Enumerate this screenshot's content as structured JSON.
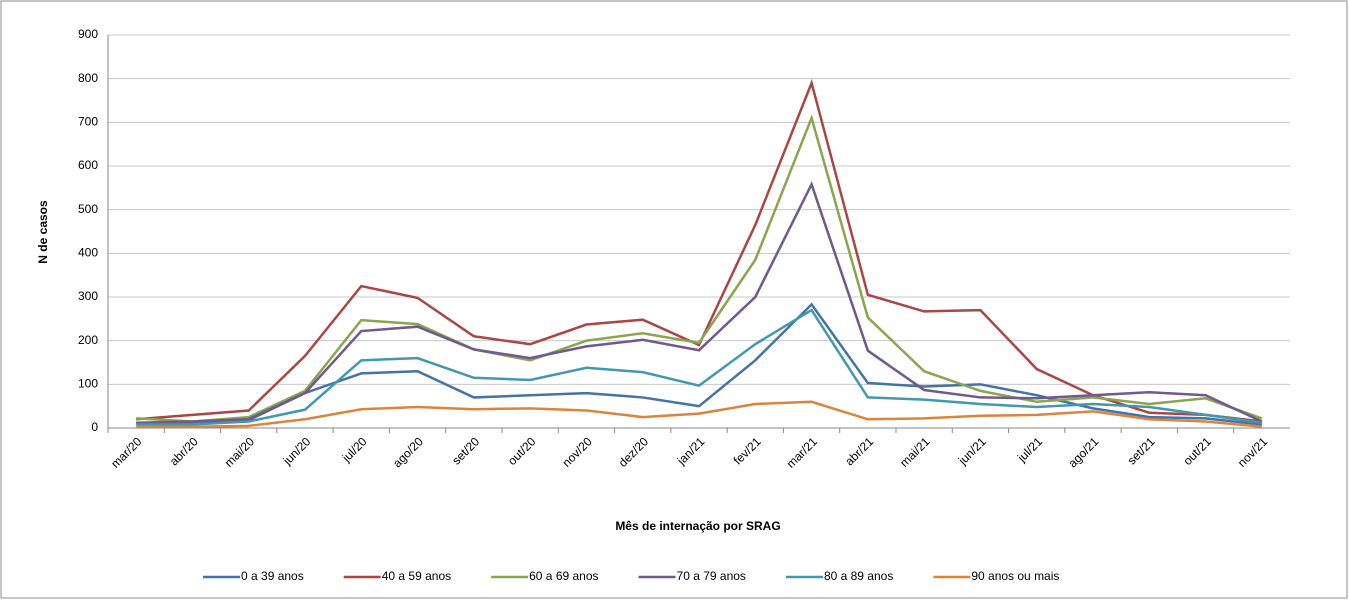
{
  "chart_data": {
    "type": "line",
    "x_label": "Mês de internação por SRAG",
    "y_label": "N de casos",
    "categories": [
      "mar/20",
      "abr/20",
      "mai/20",
      "jun/20",
      "jul/20",
      "ago/20",
      "set/20",
      "out/20",
      "nov/20",
      "dez/20",
      "jan/21",
      "fev/21",
      "mar/21",
      "abr/21",
      "mai/21",
      "jun/21",
      "jul/21",
      "ago/21",
      "set/21",
      "out/21",
      "nov/21"
    ],
    "series": [
      {
        "name": "0 a 39 anos",
        "color": "#4572a7",
        "values": [
          10,
          12,
          18,
          80,
          125,
          130,
          70,
          75,
          80,
          70,
          50,
          155,
          283,
          103,
          95,
          100,
          75,
          45,
          25,
          22,
          8
        ]
      },
      {
        "name": "40 a 59 anos",
        "color": "#aa4643",
        "values": [
          20,
          30,
          40,
          165,
          325,
          298,
          210,
          192,
          237,
          248,
          190,
          465,
          790,
          305,
          267,
          270,
          135,
          75,
          35,
          30,
          15
        ]
      },
      {
        "name": "60 a 69 anos",
        "color": "#89a54e",
        "values": [
          22,
          15,
          25,
          85,
          247,
          238,
          180,
          155,
          200,
          217,
          195,
          385,
          710,
          253,
          130,
          85,
          60,
          70,
          55,
          68,
          22
        ]
      },
      {
        "name": "70 a 79 anos",
        "color": "#71588f",
        "values": [
          12,
          15,
          20,
          80,
          222,
          232,
          180,
          160,
          187,
          202,
          178,
          300,
          558,
          177,
          87,
          70,
          68,
          75,
          82,
          75,
          15
        ]
      },
      {
        "name": "80 a 89 anos",
        "color": "#4198af",
        "values": [
          8,
          8,
          15,
          42,
          155,
          160,
          115,
          110,
          138,
          128,
          97,
          192,
          270,
          70,
          65,
          55,
          48,
          55,
          48,
          30,
          12
        ]
      },
      {
        "name": "90 anos ou mais",
        "color": "#db843d",
        "values": [
          3,
          3,
          5,
          20,
          43,
          48,
          43,
          45,
          40,
          25,
          33,
          55,
          60,
          20,
          22,
          28,
          30,
          38,
          20,
          15,
          3
        ]
      }
    ],
    "ylim": [
      0,
      900
    ],
    "yticks": [
      0,
      100,
      200,
      300,
      400,
      500,
      600,
      700,
      800,
      900
    ],
    "grid": true,
    "legend": "bottom"
  }
}
